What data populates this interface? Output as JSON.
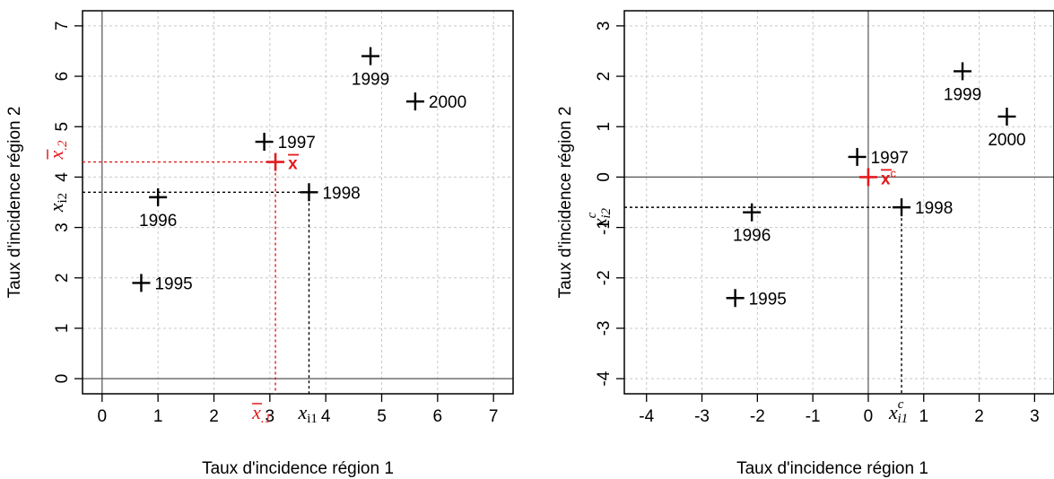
{
  "colors": {
    "accent": "#e41a1c",
    "points": "#000000",
    "grid": "#c8c8c8",
    "zero_lines": "#555555"
  },
  "chart_data": [
    {
      "type": "scatter",
      "xlabel": "Taux d'incidence région 1",
      "ylabel": "Taux d'incidence région 2",
      "xlim": [
        -0.35,
        7.35
      ],
      "ylim": [
        -0.3,
        7.3
      ],
      "xticks": [
        0,
        1,
        2,
        3,
        4,
        5,
        6,
        7
      ],
      "yticks": [
        0,
        1,
        2,
        3,
        4,
        5,
        6,
        7
      ],
      "grid": true,
      "points": [
        {
          "label": "1995",
          "x": 0.7,
          "y": 1.9,
          "label_pos": "right"
        },
        {
          "label": "1996",
          "x": 1.0,
          "y": 3.6,
          "label_pos": "below"
        },
        {
          "label": "1997",
          "x": 2.9,
          "y": 4.7,
          "label_pos": "right"
        },
        {
          "label": "1998",
          "x": 3.7,
          "y": 3.7,
          "label_pos": "right"
        },
        {
          "label": "1999",
          "x": 4.8,
          "y": 6.4,
          "label_pos": "below"
        },
        {
          "label": "2000",
          "x": 5.6,
          "y": 5.5,
          "label_pos": "right"
        }
      ],
      "mean_point": {
        "x": 3.1,
        "y": 4.3,
        "label": "x",
        "mean_x_label": "x",
        "mean_x_sub": ".1",
        "mean_y_label": "x",
        "mean_y_sub": ".2"
      },
      "highlight": {
        "x": 3.7,
        "y": 3.7,
        "x_label": "x",
        "x_sub": "i1",
        "y_label": "x",
        "y_sub": "i2"
      }
    },
    {
      "type": "scatter",
      "xlabel": "Taux d'incidence région 1",
      "ylabel": "Taux d'incidence région 2",
      "xlim": [
        -4.4,
        3.35
      ],
      "ylim": [
        -4.3,
        3.3
      ],
      "xticks": [
        -4,
        -3,
        -2,
        -1,
        0,
        1,
        2,
        3
      ],
      "yticks": [
        -4,
        -3,
        -2,
        -1,
        0,
        1,
        2,
        3
      ],
      "grid": true,
      "points": [
        {
          "label": "1995",
          "x": -2.4,
          "y": -2.4,
          "label_pos": "right"
        },
        {
          "label": "1996",
          "x": -2.1,
          "y": -0.7,
          "label_pos": "below"
        },
        {
          "label": "1997",
          "x": -0.2,
          "y": 0.4,
          "label_pos": "right"
        },
        {
          "label": "1998",
          "x": 0.6,
          "y": -0.6,
          "label_pos": "right"
        },
        {
          "label": "1999",
          "x": 1.7,
          "y": 2.1,
          "label_pos": "below"
        },
        {
          "label": "2000",
          "x": 2.5,
          "y": 1.2,
          "label_pos": "below"
        }
      ],
      "mean_point": {
        "x": 0,
        "y": 0,
        "label": "x",
        "sup": "c"
      },
      "highlight": {
        "x": 0.6,
        "y": -0.6,
        "x_label": "x",
        "x_sup": "c",
        "x_sub": "i1",
        "y_label": "x",
        "y_sup": "c",
        "y_sub": "i2"
      }
    }
  ]
}
